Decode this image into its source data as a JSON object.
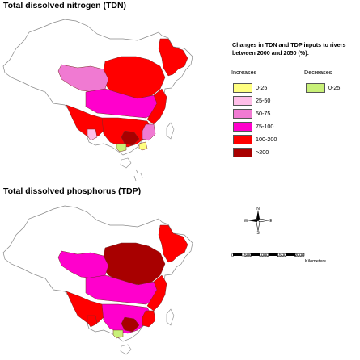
{
  "maps": {
    "tdn": {
      "title": "Total dissolved nitrogen (TDN)"
    },
    "tdp": {
      "title": "Total dissolved phosphorus (TDP)"
    }
  },
  "legend": {
    "title": "Changes in TDN and TDP inputs to rivers between 2000 and 2050 (%):",
    "increases_label": "Increases",
    "decreases_label": "Decreases",
    "increases": [
      {
        "label": "0-25",
        "color": "#ffff80"
      },
      {
        "label": "25-50",
        "color": "#ffbee8"
      },
      {
        "label": "50-75",
        "color": "#f07ad2"
      },
      {
        "label": "75-100",
        "color": "#ff00cc"
      },
      {
        "label": "100-200",
        "color": "#ff0000"
      },
      {
        "label": ">200",
        "color": "#a80000"
      }
    ],
    "decreases": [
      {
        "label": "0-25",
        "color": "#c8f078"
      }
    ]
  },
  "compass": {
    "n": "N",
    "s": "S",
    "e": "E",
    "w": "W"
  },
  "scale_bar": {
    "ticks": [
      "0",
      "500",
      "1000",
      "1500",
      "2000"
    ],
    "unit": "Kilometers"
  }
}
